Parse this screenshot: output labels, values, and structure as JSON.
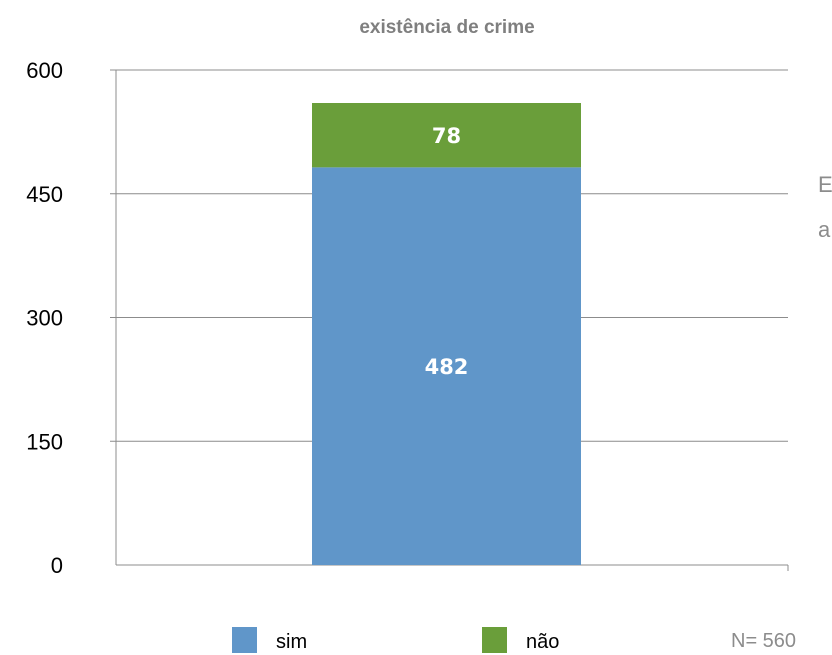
{
  "chart_data": {
    "type": "bar",
    "stacked": true,
    "title": "existência de crime",
    "categories": [
      ""
    ],
    "series": [
      {
        "name": "sim",
        "values": [
          482
        ],
        "color": "#6096c9"
      },
      {
        "name": "não",
        "values": [
          78
        ],
        "color": "#6a9e3a"
      }
    ],
    "ylim": [
      0,
      600
    ],
    "yticks": [
      "0",
      "150",
      "300",
      "450",
      "600"
    ],
    "grid": true,
    "legend": "bottom",
    "note": "N= 560",
    "side_text": [
      "E",
      "a"
    ]
  }
}
